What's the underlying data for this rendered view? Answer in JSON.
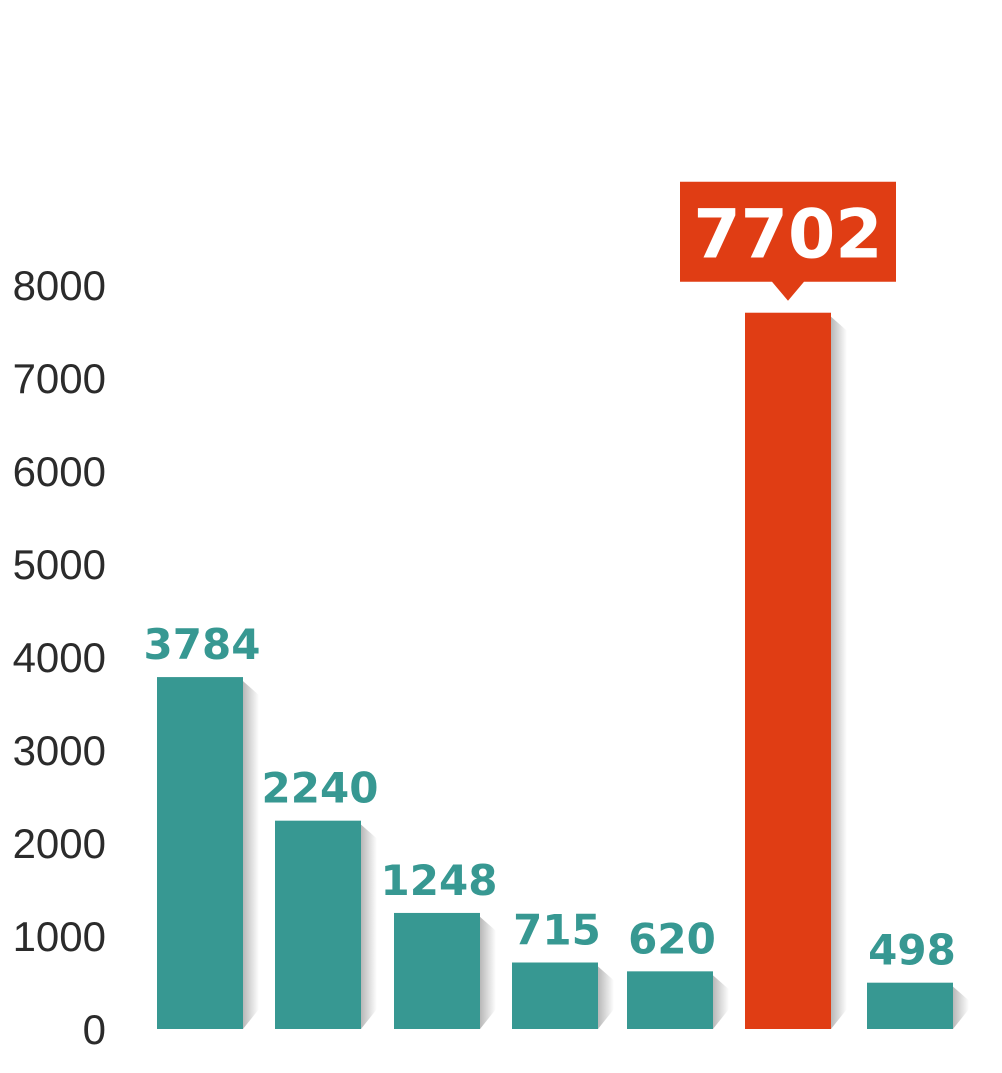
{
  "chart_data": {
    "type": "bar",
    "values": [
      3784,
      2240,
      1248,
      715,
      620,
      7702,
      498
    ],
    "highlight_index": 5,
    "yticks": [
      "0",
      "1000",
      "2000",
      "3000",
      "4000",
      "5000",
      "6000",
      "7000",
      "8000"
    ],
    "ylim": [
      0,
      8000
    ],
    "grid": false,
    "colors": {
      "bar": "#379892",
      "highlight": "#e03d14",
      "label": "#379892",
      "highlight_label_bg": "#e03d14",
      "highlight_label_text": "#ffffff"
    }
  }
}
